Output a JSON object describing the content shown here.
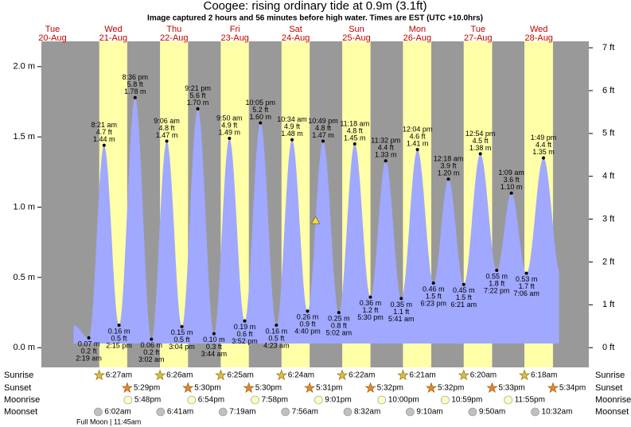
{
  "chart_data": {
    "type": "tide",
    "title": "Coogee: rising  ordinary tide at 0.9m (3.1ft)",
    "subtitle": "Image captured 2 hours and 56 minutes before high water. Times are EST (UTC +10.0hrs)",
    "ylim": [
      -0.14,
      2.18
    ],
    "yticks": [
      {
        "value": 0,
        "label": "0.0 m"
      },
      {
        "value": 0.5,
        "label": "0.5 m"
      },
      {
        "value": 1,
        "label": "1.0 m"
      },
      {
        "value": 1.5,
        "label": "1.5 m"
      },
      {
        "value": 2,
        "label": "2.0 m"
      }
    ],
    "y2lim": [
      -0.46,
      7.15
    ],
    "y2ticks": [
      {
        "value": 0,
        "label": "0 ft"
      },
      {
        "value": 1,
        "label": "1 ft"
      },
      {
        "value": 2,
        "label": "2 ft"
      },
      {
        "value": 3,
        "label": "3 ft"
      },
      {
        "value": 4,
        "label": "4 ft"
      },
      {
        "value": 5,
        "label": "5 ft"
      },
      {
        "value": 6,
        "label": "6 ft"
      },
      {
        "value": 7,
        "label": "7 ft"
      }
    ],
    "now_level": 0.9,
    "row_labels": {
      "sunrise": "Sunrise",
      "sunset": "Sunset",
      "moonrise": "Moonrise",
      "moonset": "Moonset"
    },
    "moon_phase": "Full Moon | 11:45am",
    "days": [
      {
        "name": "Tue",
        "date": "20-Aug",
        "tides": []
      },
      {
        "name": "Wed",
        "date": "21-Aug",
        "sunrise": "6:27am",
        "sunset": "5:29pm",
        "moonrise": "5:48pm",
        "moonset": "6:02am",
        "tides": [
          {
            "time": "2:19 am",
            "ft": {
              "value": 0.2,
              "label": "0.2 ft"
            },
            "m": {
              "value": 0.07,
              "label": "0.07 m"
            }
          },
          {
            "time": "8:21 am",
            "ft": {
              "value": 4.7,
              "label": "4.7 ft"
            },
            "m": {
              "value": 1.44,
              "label": "1.44 m"
            }
          },
          {
            "time": "2:15 pm",
            "ft": {
              "value": 0.5,
              "label": "0.5 ft"
            },
            "m": {
              "value": 0.16,
              "label": "0.16 m"
            }
          },
          {
            "time": "8:36 pm",
            "ft": {
              "value": 5.8,
              "label": "5.8 ft"
            },
            "m": {
              "value": 1.78,
              "label": "1.78 m"
            }
          }
        ]
      },
      {
        "name": "Thu",
        "date": "22-Aug",
        "sunrise": "6:26am",
        "sunset": "5:30pm",
        "moonrise": "6:54pm",
        "moonset": "6:41am",
        "tides": [
          {
            "time": "3:02 am",
            "ft": {
              "value": 0.2,
              "label": "0.2 ft"
            },
            "m": {
              "value": 0.06,
              "label": "0.06 m"
            }
          },
          {
            "time": "9:06 am",
            "ft": {
              "value": 4.8,
              "label": "4.8 ft"
            },
            "m": {
              "value": 1.47,
              "label": "1.47 m"
            }
          },
          {
            "time": "3:04 pm",
            "ft": {
              "value": 0.5,
              "label": "0.5 ft"
            },
            "m": {
              "value": 0.15,
              "label": "0.15 m"
            }
          },
          {
            "time": "9:21 pm",
            "ft": {
              "value": 5.6,
              "label": "5.6 ft"
            },
            "m": {
              "value": 1.7,
              "label": "1.70 m"
            }
          }
        ]
      },
      {
        "name": "Fri",
        "date": "23-Aug",
        "sunrise": "6:25am",
        "sunset": "5:30pm",
        "moonrise": "7:58pm",
        "moonset": "7:19am",
        "tides": [
          {
            "time": "3:44 am",
            "ft": {
              "value": 0.3,
              "label": "0.3 ft"
            },
            "m": {
              "value": 0.1,
              "label": "0.10 m"
            }
          },
          {
            "time": "9:50 am",
            "ft": {
              "value": 4.9,
              "label": "4.9 ft"
            },
            "m": {
              "value": 1.49,
              "label": "1.49 m"
            }
          },
          {
            "time": "3:52 pm",
            "ft": {
              "value": 0.6,
              "label": "0.6 ft"
            },
            "m": {
              "value": 0.19,
              "label": "0.19 m"
            }
          },
          {
            "time": "10:05 pm",
            "ft": {
              "value": 5.2,
              "label": "5.2 ft"
            },
            "m": {
              "value": 1.6,
              "label": "1.60 m"
            }
          }
        ]
      },
      {
        "name": "Sat",
        "date": "24-Aug",
        "sunrise": "6:24am",
        "sunset": "5:31pm",
        "moonrise": "9:01pm",
        "moonset": "7:56am",
        "tides": [
          {
            "time": "4:23 am",
            "ft": {
              "value": 0.5,
              "label": "0.5 ft"
            },
            "m": {
              "value": 0.16,
              "label": "0.16 m"
            }
          },
          {
            "time": "10:34 am",
            "ft": {
              "value": 4.9,
              "label": "4.9 ft"
            },
            "m": {
              "value": 1.48,
              "label": "1.48 m"
            }
          },
          {
            "time": "4:40 pm",
            "ft": {
              "value": 0.9,
              "label": "0.9 ft"
            },
            "m": {
              "value": 0.26,
              "label": "0.26 m"
            }
          },
          {
            "time": "10:49 pm",
            "ft": {
              "value": 4.8,
              "label": "4.8 ft"
            },
            "m": {
              "value": 1.47,
              "label": "1.47 m"
            }
          }
        ]
      },
      {
        "name": "Sun",
        "date": "25-Aug",
        "sunrise": "6:22am",
        "sunset": "5:32pm",
        "moonrise": "10:00pm",
        "moonset": "8:32am",
        "tides": [
          {
            "time": "5:02 am",
            "ft": {
              "value": 0.8,
              "label": "0.8 ft"
            },
            "m": {
              "value": 0.25,
              "label": "0.25 m"
            }
          },
          {
            "time": "11:18 am",
            "ft": {
              "value": 4.8,
              "label": "4.8 ft"
            },
            "m": {
              "value": 1.45,
              "label": "1.45 m"
            }
          },
          {
            "time": "5:30 pm",
            "ft": {
              "value": 1.2,
              "label": "1.2 ft"
            },
            "m": {
              "value": 0.36,
              "label": "0.36 m"
            }
          },
          {
            "time": "11:32 pm",
            "ft": {
              "value": 4.4,
              "label": "4.4 ft"
            },
            "m": {
              "value": 1.33,
              "label": "1.33 m"
            }
          }
        ]
      },
      {
        "name": "Mon",
        "date": "26-Aug",
        "sunrise": "6:21am",
        "sunset": "5:32pm",
        "moonrise": "10:59pm",
        "moonset": "9:10am",
        "tides": [
          {
            "time": "5:41 am",
            "ft": {
              "value": 1.1,
              "label": "1.1 ft"
            },
            "m": {
              "value": 0.35,
              "label": "0.35 m"
            }
          },
          {
            "time": "12:04 pm",
            "ft": {
              "value": 4.6,
              "label": "4.6 ft"
            },
            "m": {
              "value": 1.41,
              "label": "1.41 m"
            }
          },
          {
            "time": "6:23 pm",
            "ft": {
              "value": 1.5,
              "label": "1.5 ft"
            },
            "m": {
              "value": 0.46,
              "label": "0.46 m"
            }
          }
        ]
      },
      {
        "name": "Tue",
        "date": "27-Aug",
        "sunrise": "6:20am",
        "sunset": "5:33pm",
        "moonrise": "11:55pm",
        "moonset": "9:50am",
        "tides": [
          {
            "time": "12:18 am",
            "ft": {
              "value": 3.9,
              "label": "3.9 ft"
            },
            "m": {
              "value": 1.2,
              "label": "1.20 m"
            }
          },
          {
            "time": "6:21 am",
            "ft": {
              "value": 1.5,
              "label": "1.5 ft"
            },
            "m": {
              "value": 0.45,
              "label": "0.45 m"
            }
          },
          {
            "time": "12:54 pm",
            "ft": {
              "value": 4.5,
              "label": "4.5 ft"
            },
            "m": {
              "value": 1.38,
              "label": "1.38 m"
            }
          },
          {
            "time": "7:22 pm",
            "ft": {
              "value": 1.8,
              "label": "1.8 ft"
            },
            "m": {
              "value": 0.55,
              "label": "0.55 m"
            }
          }
        ]
      },
      {
        "name": "Wed",
        "date": "28-Aug",
        "sunrise": "6:18am",
        "sunset": "5:34pm",
        "moonset": "10:32am",
        "tides": [
          {
            "time": "1:09 am",
            "ft": {
              "value": 3.6,
              "label": "3.6 ft"
            },
            "m": {
              "value": 1.1,
              "label": "1.10 m"
            }
          },
          {
            "time": "7:06 am",
            "ft": {
              "value": 1.7,
              "label": "1.7 ft"
            },
            "m": {
              "value": 0.53,
              "label": "0.53 m"
            }
          },
          {
            "time": "1:49 pm",
            "ft": {
              "value": 4.4,
              "label": "4.4 ft"
            },
            "m": {
              "value": 1.35,
              "label": "1.35 m"
            }
          }
        ]
      }
    ]
  }
}
